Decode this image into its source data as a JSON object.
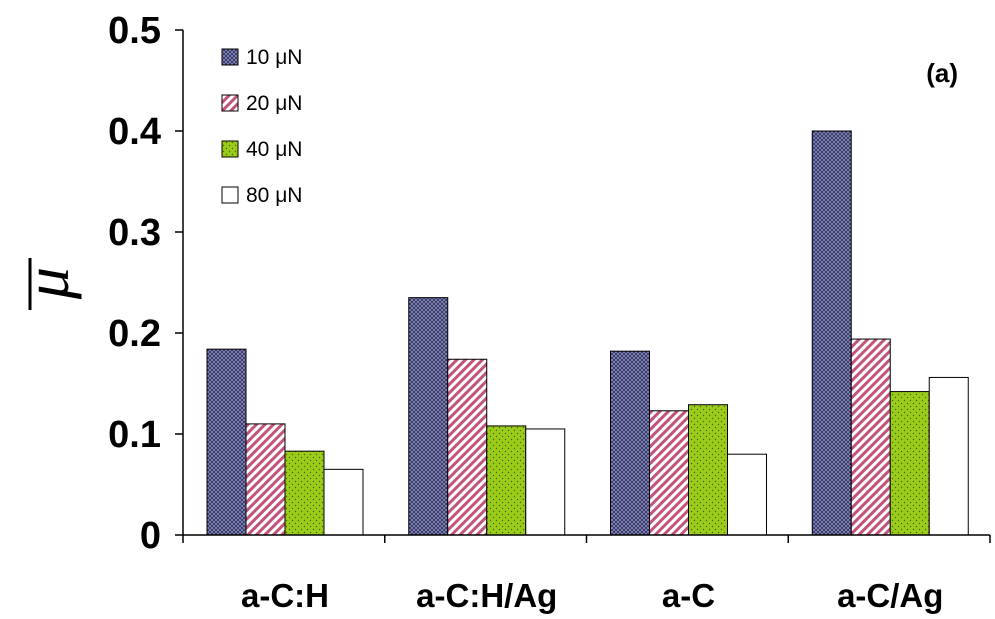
{
  "chart_data": {
    "type": "bar",
    "categories": [
      "a-C:H",
      "a-C:H/Ag",
      "a-C",
      "a-C/Ag"
    ],
    "series": [
      {
        "name": "10 μN",
        "values": [
          0.184,
          0.235,
          0.182,
          0.4
        ],
        "color": "#2b2d5e",
        "pattern": "crosshatch"
      },
      {
        "name": "20 μN",
        "values": [
          0.11,
          0.174,
          0.123,
          0.194
        ],
        "color": "#c2547c",
        "pattern": "diagonal-stripes"
      },
      {
        "name": "40 μN",
        "values": [
          0.083,
          0.108,
          0.129,
          0.142
        ],
        "color": "#9ccc1a",
        "pattern": "dots"
      },
      {
        "name": "80 μN",
        "values": [
          0.065,
          0.105,
          0.08,
          0.156
        ],
        "color": "#ffffff",
        "pattern": "none"
      }
    ],
    "ylabel": "μ",
    "ylim": [
      0,
      0.5
    ],
    "yticks": [
      "0",
      "0.1",
      "0.2",
      "0.3",
      "0.4",
      "0.5"
    ],
    "annotation": "(a)",
    "legend_position": "top-left",
    "grid": false
  }
}
